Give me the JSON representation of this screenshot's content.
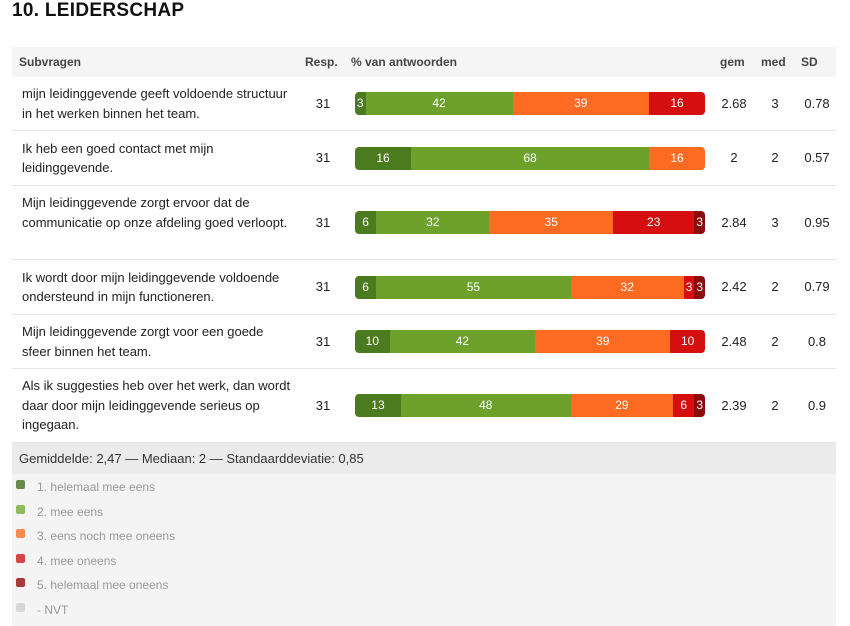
{
  "title": "10.  LEIDERSCHAP",
  "headers": {
    "question": "Subvragen",
    "resp": "Resp.",
    "pct": "% van antwoorden",
    "mean": "gem",
    "median": "med",
    "sd": "SD"
  },
  "colors": [
    "#4b7a1f",
    "#6da12c",
    "#fd6b22",
    "#d50f0f",
    "#8a0c0c"
  ],
  "rows": [
    {
      "question": "mijn leidinggevende geeft voldoende structuur in het werken binnen het team.",
      "resp": "31",
      "values": [
        3,
        42,
        39,
        16,
        0
      ],
      "mean": "2.68",
      "median": "3",
      "sd": "0.78"
    },
    {
      "question": "Ik heb een goed contact met mijn leidinggevende.",
      "resp": "31",
      "values": [
        16,
        68,
        16,
        0,
        0
      ],
      "mean": "2",
      "median": "2",
      "sd": "0.57"
    },
    {
      "question": "Mijn leidinggevende zorgt ervoor dat de communicatie op onze afdeling goed verloopt.",
      "resp": "31",
      "values": [
        6,
        32,
        35,
        23,
        3
      ],
      "mean": "2.84",
      "median": "3",
      "sd": "0.95"
    },
    {
      "question": "Ik wordt door mijn leidinggevende voldoende ondersteund in mijn functioneren.",
      "resp": "31",
      "values": [
        6,
        55,
        32,
        3,
        3
      ],
      "mean": "2.42",
      "median": "2",
      "sd": "0.79"
    },
    {
      "question": "Mijn leidinggevende zorgt voor een goede sfeer binnen het team.",
      "resp": "31",
      "values": [
        10,
        42,
        39,
        10,
        0
      ],
      "mean": "2.48",
      "median": "2",
      "sd": "0.8"
    },
    {
      "question": "Als ik suggesties heb over het werk, dan wordt daar door mijn leidinggevende serieus op ingegaan.",
      "resp": "31",
      "values": [
        13,
        48,
        29,
        6,
        3
      ],
      "mean": "2.39",
      "median": "2",
      "sd": "0.9"
    }
  ],
  "summary": "Gemiddelde: 2,47 — Mediaan: 2 — Standaarddeviatie: 0,85",
  "legend": [
    {
      "label": "1. helemaal mee eens",
      "color": "#6b8a4e"
    },
    {
      "label": "2. mee eens",
      "color": "#8dbb5e"
    },
    {
      "label": "3. eens noch mee oneens",
      "color": "#f68a4f"
    },
    {
      "label": "4. mee oneens",
      "color": "#d84545"
    },
    {
      "label": "5. helemaal mee oneens",
      "color": "#a83a3a"
    },
    {
      "label": "- NVT",
      "color": "#d8d8d8"
    }
  ]
}
